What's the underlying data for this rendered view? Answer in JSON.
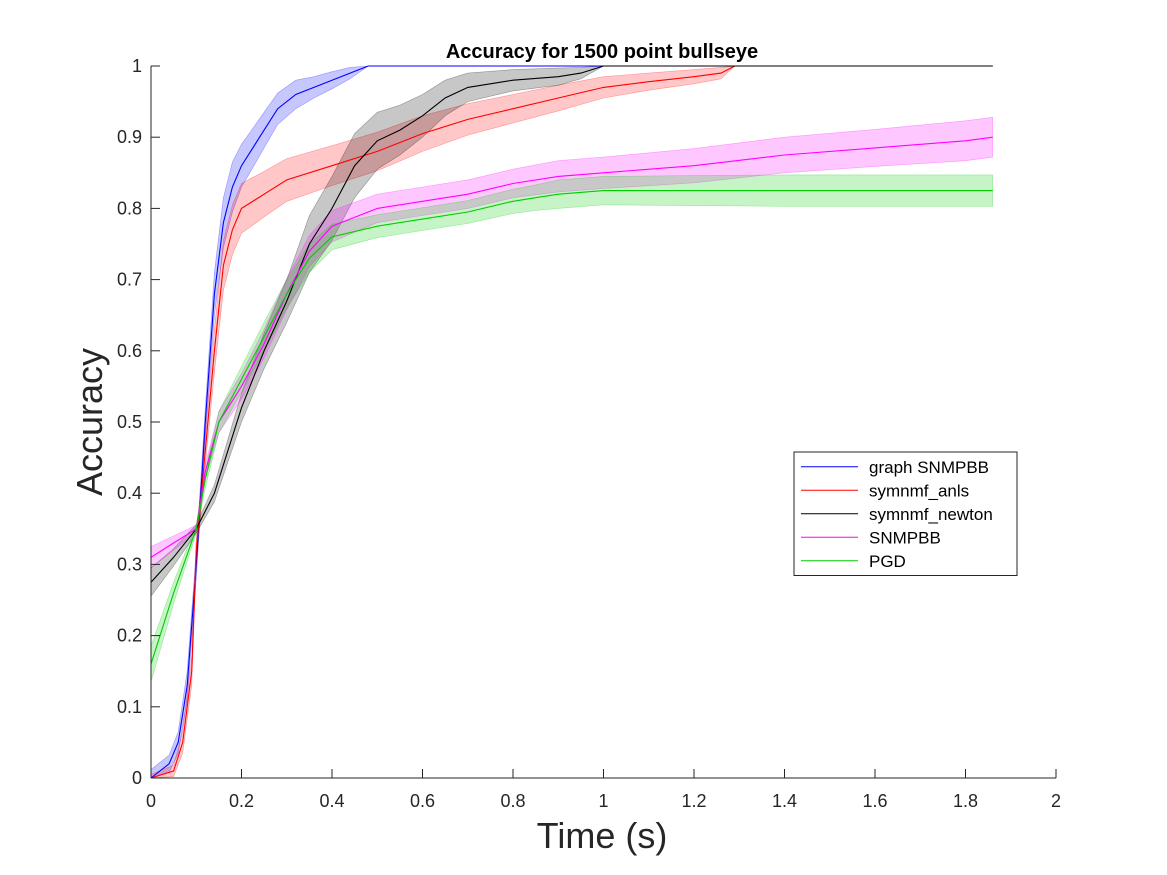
{
  "chart_data": {
    "type": "line",
    "title": "Accuracy for 1500 point bullseye",
    "xlabel": "Time (s)",
    "ylabel": "Accuracy",
    "xlim": [
      0,
      2
    ],
    "ylim": [
      0,
      1
    ],
    "xticks": [
      0,
      0.2,
      0.4,
      0.6,
      0.8,
      1,
      1.2,
      1.4,
      1.6,
      1.8,
      2
    ],
    "xtick_labels": [
      "0",
      "0.2",
      "0.4",
      "0.6",
      "0.8",
      "1",
      "1.2",
      "1.4",
      "1.6",
      "1.8",
      "2"
    ],
    "yticks": [
      0,
      0.1,
      0.2,
      0.3,
      0.4,
      0.5,
      0.6,
      0.7,
      0.8,
      0.9,
      1
    ],
    "ytick_labels": [
      "0",
      "0.1",
      "0.2",
      "0.3",
      "0.4",
      "0.5",
      "0.6",
      "0.7",
      "0.8",
      "0.9",
      "1"
    ],
    "grid": false,
    "legend_position": "right-middle",
    "series": [
      {
        "name": "graph SNMPBB",
        "color": "#0000ff",
        "x": [
          0,
          0.04,
          0.06,
          0.08,
          0.1,
          0.12,
          0.14,
          0.16,
          0.18,
          0.2,
          0.22,
          0.25,
          0.28,
          0.32,
          0.36,
          0.4,
          0.44,
          0.48,
          1.86
        ],
        "y": [
          0.0,
          0.02,
          0.05,
          0.13,
          0.3,
          0.5,
          0.68,
          0.78,
          0.83,
          0.86,
          0.88,
          0.91,
          0.94,
          0.96,
          0.97,
          0.98,
          0.99,
          1.0,
          1.0
        ],
        "band": [
          0.012,
          0.012,
          0.015,
          0.02,
          0.02,
          0.02,
          0.03,
          0.035,
          0.035,
          0.03,
          0.028,
          0.025,
          0.022,
          0.02,
          0.015,
          0.012,
          0.008,
          0.0,
          0.0
        ]
      },
      {
        "name": "symnmf_anls",
        "color": "#ff0000",
        "x": [
          0,
          0.05,
          0.07,
          0.09,
          0.1,
          0.12,
          0.14,
          0.16,
          0.18,
          0.2,
          0.25,
          0.3,
          0.4,
          0.5,
          0.6,
          0.7,
          0.8,
          0.9,
          1.0,
          1.1,
          1.2,
          1.26,
          1.29,
          1.86
        ],
        "y": [
          0.0,
          0.01,
          0.05,
          0.15,
          0.32,
          0.46,
          0.6,
          0.72,
          0.77,
          0.8,
          0.82,
          0.84,
          0.86,
          0.88,
          0.905,
          0.925,
          0.94,
          0.955,
          0.97,
          0.978,
          0.985,
          0.99,
          1.0,
          1.0
        ],
        "band": [
          0.005,
          0.008,
          0.015,
          0.02,
          0.02,
          0.02,
          0.03,
          0.035,
          0.035,
          0.035,
          0.032,
          0.03,
          0.028,
          0.027,
          0.025,
          0.022,
          0.02,
          0.018,
          0.015,
          0.012,
          0.01,
          0.008,
          0.0,
          0.0
        ]
      },
      {
        "name": "symnmf_newton",
        "color": "#000000",
        "x": [
          0,
          0.05,
          0.1,
          0.14,
          0.2,
          0.25,
          0.3,
          0.35,
          0.4,
          0.45,
          0.5,
          0.55,
          0.6,
          0.65,
          0.7,
          0.8,
          0.9,
          0.95,
          1.0,
          1.86
        ],
        "y": [
          0.275,
          0.31,
          0.35,
          0.4,
          0.52,
          0.6,
          0.67,
          0.75,
          0.8,
          0.86,
          0.895,
          0.91,
          0.93,
          0.955,
          0.97,
          0.98,
          0.985,
          0.99,
          1.0,
          1.0
        ],
        "band": [
          0.02,
          0.012,
          0.006,
          0.012,
          0.02,
          0.025,
          0.03,
          0.04,
          0.045,
          0.045,
          0.04,
          0.035,
          0.03,
          0.025,
          0.02,
          0.015,
          0.012,
          0.008,
          0.0,
          0.0
        ]
      },
      {
        "name": "SNMPBB",
        "color": "#ff00ff",
        "x": [
          0,
          0.05,
          0.1,
          0.12,
          0.15,
          0.2,
          0.25,
          0.3,
          0.35,
          0.4,
          0.5,
          0.6,
          0.7,
          0.8,
          0.9,
          1.0,
          1.2,
          1.4,
          1.6,
          1.8,
          1.86
        ],
        "y": [
          0.31,
          0.33,
          0.35,
          0.43,
          0.5,
          0.55,
          0.61,
          0.68,
          0.74,
          0.775,
          0.8,
          0.81,
          0.82,
          0.835,
          0.845,
          0.85,
          0.86,
          0.875,
          0.885,
          0.895,
          0.9
        ],
        "band": [
          0.015,
          0.01,
          0.005,
          0.01,
          0.015,
          0.018,
          0.02,
          0.022,
          0.022,
          0.022,
          0.02,
          0.02,
          0.02,
          0.02,
          0.022,
          0.022,
          0.024,
          0.025,
          0.026,
          0.028,
          0.028
        ]
      },
      {
        "name": "PGD",
        "color": "#00cc00",
        "x": [
          0,
          0.05,
          0.1,
          0.12,
          0.15,
          0.2,
          0.25,
          0.3,
          0.35,
          0.4,
          0.5,
          0.6,
          0.7,
          0.8,
          0.85,
          0.9,
          1.0,
          1.2,
          1.4,
          1.6,
          1.8,
          1.86
        ],
        "y": [
          0.16,
          0.26,
          0.35,
          0.42,
          0.5,
          0.56,
          0.62,
          0.68,
          0.73,
          0.76,
          0.775,
          0.785,
          0.795,
          0.81,
          0.815,
          0.82,
          0.825,
          0.825,
          0.825,
          0.825,
          0.825,
          0.825
        ],
        "band": [
          0.025,
          0.015,
          0.006,
          0.012,
          0.015,
          0.018,
          0.02,
          0.02,
          0.02,
          0.018,
          0.016,
          0.016,
          0.016,
          0.017,
          0.018,
          0.02,
          0.02,
          0.021,
          0.022,
          0.022,
          0.022,
          0.022
        ]
      }
    ]
  }
}
